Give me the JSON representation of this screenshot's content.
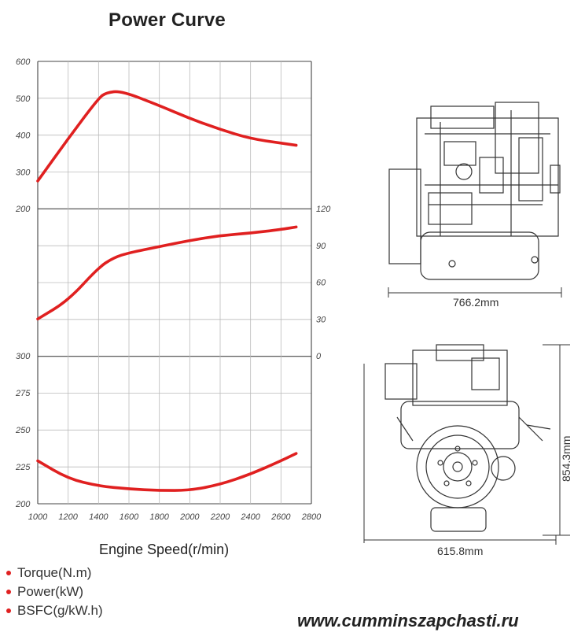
{
  "chart_data": {
    "type": "line",
    "title": "Power Curve",
    "xlabel": "Engine Speed(r/min)",
    "x_ticks": [
      "1000",
      "1200",
      "1400",
      "1600",
      "1800",
      "2000",
      "2200",
      "2400",
      "2600",
      "2800"
    ],
    "xlim": [
      1000,
      2800
    ],
    "legend": [
      "Torque(N.m)",
      "Power(kW)",
      "BSFC(g/kW.h)"
    ],
    "legend_position": "bottom-left",
    "grid": true,
    "series": [
      {
        "name": "Torque(N.m)",
        "axis": "torque",
        "color": "#e02020",
        "x": [
          1000,
          1200,
          1400,
          1450,
          1550,
          1800,
          2000,
          2200,
          2400,
          2600,
          2700
        ],
        "y": [
          275,
          390,
          500,
          515,
          520,
          480,
          445,
          415,
          390,
          378,
          372
        ]
      },
      {
        "name": "Power(kW)",
        "axis": "power",
        "color": "#e02020",
        "x": [
          1000,
          1200,
          1400,
          1500,
          1600,
          1800,
          2000,
          2200,
          2400,
          2600,
          2700
        ],
        "y": [
          30,
          45,
          72,
          80,
          84,
          89,
          94,
          98,
          100,
          103,
          105
        ]
      },
      {
        "name": "BSFC(g/kW.h)",
        "axis": "bsfc",
        "color": "#e02020",
        "x": [
          1000,
          1200,
          1400,
          1600,
          1800,
          2000,
          2200,
          2400,
          2600,
          2700
        ],
        "y": [
          229,
          217,
          212,
          210,
          209,
          209,
          213,
          220,
          229,
          234
        ]
      }
    ],
    "axes": {
      "torque": {
        "ticks": [
          "600",
          "500",
          "400",
          "300",
          "200"
        ],
        "ylim": [
          200,
          600
        ]
      },
      "power": {
        "ticks": [
          "120",
          "90",
          "60",
          "30",
          "0"
        ],
        "ylim": [
          0,
          120
        ]
      },
      "bsfc": {
        "ticks": [
          "300",
          "275",
          "250",
          "225",
          "200"
        ],
        "ylim": [
          200,
          300
        ]
      }
    }
  },
  "engine_drawing": {
    "side_width_label": "766.2mm",
    "front_width_label": "615.8mm",
    "front_height_label": "854.3mm"
  },
  "watermark": "www.cumminszapchasti.ru"
}
